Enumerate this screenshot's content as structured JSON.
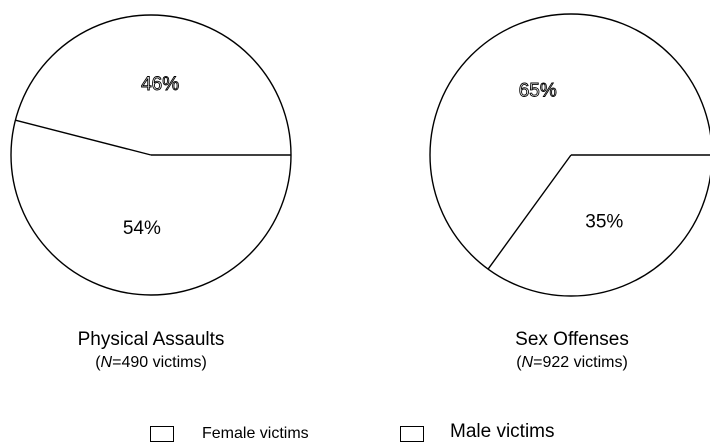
{
  "chart_data": [
    {
      "type": "pie",
      "title": "Physical Assaults",
      "subtitle_prefix": "N",
      "subtitle_suffix": "=490 victims",
      "slices": [
        {
          "label": "Male victims",
          "value": 46,
          "text": "46%",
          "style": "outline"
        },
        {
          "label": "Female victims",
          "value": 54,
          "text": "54%",
          "style": "plain"
        }
      ]
    },
    {
      "type": "pie",
      "title": "Sex Offenses",
      "subtitle_prefix": "N",
      "subtitle_suffix": "=922 victims",
      "slices": [
        {
          "label": "Female victims",
          "value": 65,
          "text": "65%",
          "style": "outline"
        },
        {
          "label": "Male victims",
          "value": 35,
          "text": "35%",
          "style": "plain"
        }
      ]
    }
  ],
  "legend": {
    "female_label": "Female victims",
    "male_label": "Male victims"
  }
}
